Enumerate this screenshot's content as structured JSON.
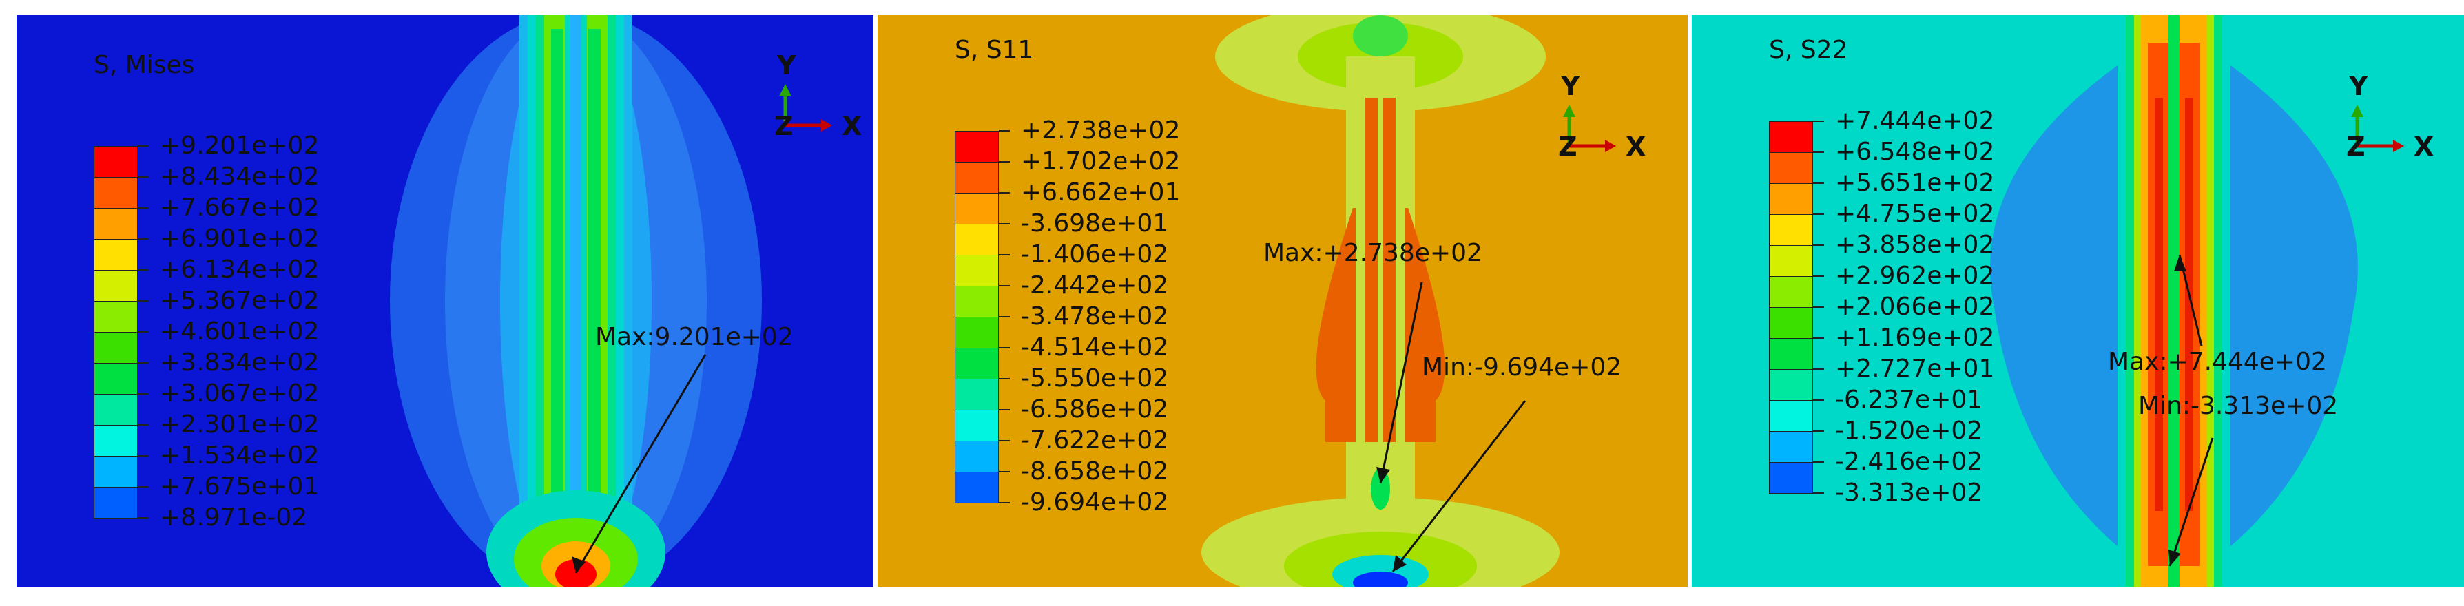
{
  "panels": [
    {
      "title": "S, Mises",
      "background": "#0a16d4",
      "legend_values": [
        "+9.201e+02",
        "+8.434e+02",
        "+7.667e+02",
        "+6.901e+02",
        "+6.134e+02",
        "+5.367e+02",
        "+4.601e+02",
        "+3.834e+02",
        "+3.067e+02",
        "+2.301e+02",
        "+1.534e+02",
        "+7.675e+01",
        "+8.971e-02"
      ],
      "legend_colors": [
        "#ff0000",
        "#ff5a00",
        "#ffa000",
        "#ffe000",
        "#d4f000",
        "#8cec00",
        "#3ce000",
        "#00e040",
        "#00e8a0",
        "#00f4e0",
        "#00b4ff",
        "#0060ff",
        "#0000ff"
      ],
      "annotations": [
        "Max:9.201e+02"
      ]
    },
    {
      "title": "S, S11",
      "background": "#e0a000",
      "legend_values": [
        "+2.738e+02",
        "+1.702e+02",
        "+6.662e+01",
        "-3.698e+01",
        "-1.406e+02",
        "-2.442e+02",
        "-3.478e+02",
        "-4.514e+02",
        "-5.550e+02",
        "-6.586e+02",
        "-7.622e+02",
        "-8.658e+02",
        "-9.694e+02"
      ],
      "legend_colors": [
        "#ff0000",
        "#ff5a00",
        "#ffa000",
        "#ffe000",
        "#d4f000",
        "#8cec00",
        "#3ce000",
        "#00e040",
        "#00e8a0",
        "#00f4e0",
        "#00b4ff",
        "#0060ff",
        "#0000ff"
      ],
      "annotations": [
        "Max:+2.738e+02",
        "Min:-9.694e+02"
      ]
    },
    {
      "title": "S, S22",
      "background": "#00d8c8",
      "legend_values": [
        "+7.444e+02",
        "+6.548e+02",
        "+5.651e+02",
        "+4.755e+02",
        "+3.858e+02",
        "+2.962e+02",
        "+2.066e+02",
        "+1.169e+02",
        "+2.727e+01",
        "-6.237e+01",
        "-1.520e+02",
        "-2.416e+02",
        "-3.313e+02"
      ],
      "legend_colors": [
        "#ff0000",
        "#ff5a00",
        "#ffa000",
        "#ffe000",
        "#d4f000",
        "#8cec00",
        "#3ce000",
        "#00e040",
        "#00e8a0",
        "#00f4e0",
        "#00b4ff",
        "#0060ff",
        "#0000ff"
      ],
      "annotations": [
        "Max:+7.444e+02",
        "Min:-3.313e+02"
      ]
    }
  ],
  "triad": {
    "y": "Y",
    "x": "X",
    "z": "Z"
  }
}
